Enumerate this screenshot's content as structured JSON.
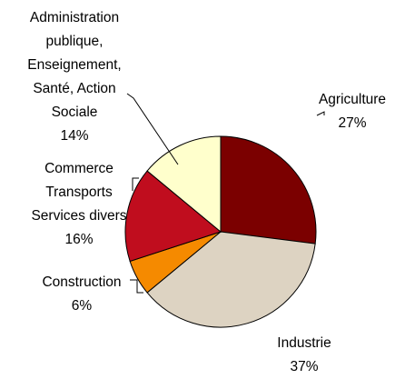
{
  "chart_data": {
    "type": "pie",
    "slices": [
      {
        "label_lines": [
          "Agriculture"
        ],
        "pct_label": "27%",
        "value": 27,
        "color": "#7b0000"
      },
      {
        "label_lines": [
          "Industrie"
        ],
        "pct_label": "37%",
        "value": 37,
        "color": "#ddd3c2"
      },
      {
        "label_lines": [
          "Construction"
        ],
        "pct_label": "6%",
        "value": 6,
        "color": "#f58a00"
      },
      {
        "label_lines": [
          "Commerce",
          "Transports",
          "Services divers"
        ],
        "pct_label": "16%",
        "value": 16,
        "color": "#c00d1e"
      },
      {
        "label_lines": [
          "Administration",
          "publique,",
          "Enseignement,",
          "Santé, Action",
          "Sociale"
        ],
        "pct_label": "14%",
        "value": 14,
        "color": "#ffffcc"
      }
    ],
    "start_angle_deg": 0,
    "direction": "clockwise",
    "legend": "none"
  }
}
